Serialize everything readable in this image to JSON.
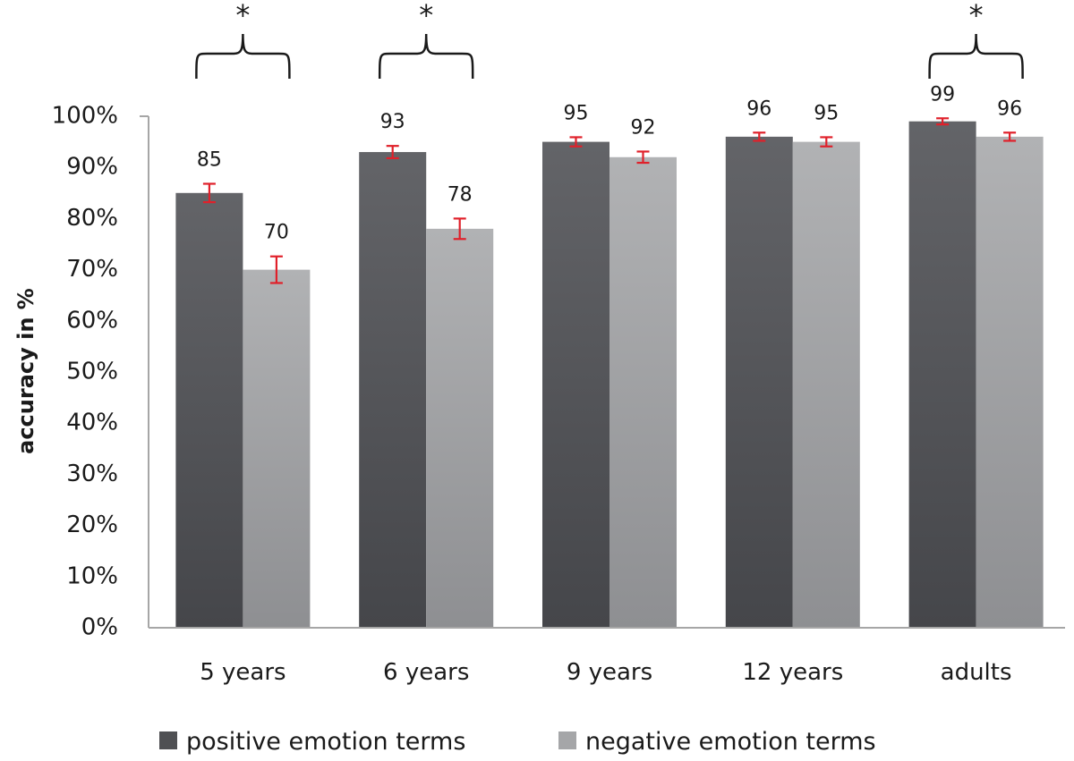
{
  "chart_data": {
    "type": "bar",
    "categories": [
      "5 years",
      "6 years",
      "9 years",
      "12 years",
      "adults"
    ],
    "series": [
      {
        "name": "positive emotion terms",
        "values": [
          85,
          93,
          95,
          96,
          99
        ],
        "error": [
          1.8,
          1.2,
          0.9,
          0.8,
          0.6
        ],
        "color": "#555659"
      },
      {
        "name": "negative emotion terms",
        "values": [
          70,
          78,
          92,
          95,
          96
        ],
        "error": [
          2.6,
          2.0,
          1.1,
          0.9,
          0.8
        ],
        "color": "#aaabad"
      }
    ],
    "value_labels": [
      [
        "85",
        "93",
        "95",
        "96",
        "99"
      ],
      [
        "70",
        "78",
        "92",
        "95",
        "96"
      ]
    ],
    "y_ticks": [
      "0%",
      "10%",
      "20%",
      "30%",
      "40%",
      "50%",
      "60%",
      "70%",
      "80%",
      "90%",
      "100%"
    ],
    "ylim": [
      0,
      100
    ],
    "ylabel": "accuracy in %",
    "xlabel": "",
    "title": "",
    "significance": [
      {
        "category_index": 0,
        "label": "*"
      },
      {
        "category_index": 1,
        "label": "*"
      },
      {
        "category_index": 4,
        "label": "*"
      }
    ],
    "error_bar_color": "#e0202a",
    "legend_position": "bottom",
    "grid": false
  }
}
